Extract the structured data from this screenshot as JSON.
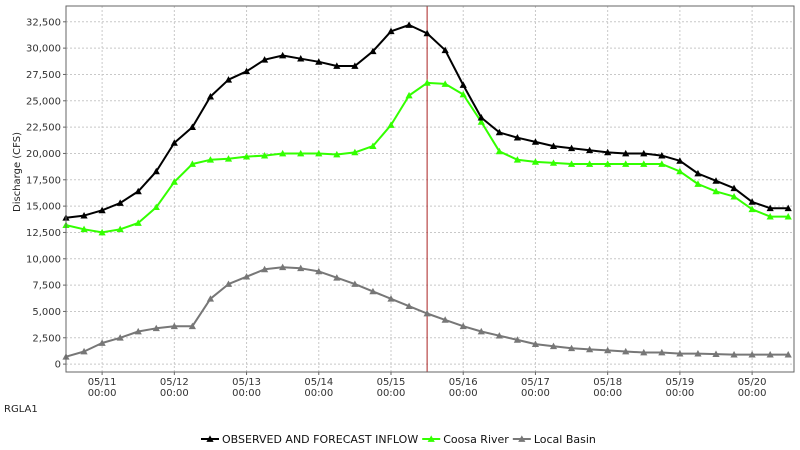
{
  "station_label": "RGLA1",
  "chart_data": {
    "type": "line",
    "title": "",
    "ylabel": "Discharge (CFS)",
    "xlabel": "",
    "ylim": [
      -750,
      34000
    ],
    "xlim": [
      0,
      10.08
    ],
    "y_ticks": [
      0,
      2500,
      5000,
      7500,
      10000,
      12500,
      15000,
      17500,
      20000,
      22500,
      25000,
      27500,
      30000,
      32500
    ],
    "y_tick_labels": [
      "0",
      "2,500",
      "5,000",
      "7,500",
      "10,000",
      "12,500",
      "15,000",
      "17,500",
      "20,000",
      "22,500",
      "25,000",
      "27,500",
      "30,000",
      "32,500"
    ],
    "x_ticks": [
      {
        "x": 0.5,
        "date": "05/11",
        "time": "00:00"
      },
      {
        "x": 1.5,
        "date": "05/12",
        "time": "00:00"
      },
      {
        "x": 2.5,
        "date": "05/13",
        "time": "00:00"
      },
      {
        "x": 3.5,
        "date": "05/14",
        "time": "00:00"
      },
      {
        "x": 4.5,
        "date": "05/15",
        "time": "00:00"
      },
      {
        "x": 5.5,
        "date": "05/16",
        "time": "00:00"
      },
      {
        "x": 6.5,
        "date": "05/17",
        "time": "00:00"
      },
      {
        "x": 7.5,
        "date": "05/18",
        "time": "00:00"
      },
      {
        "x": 8.5,
        "date": "05/19",
        "time": "00:00"
      },
      {
        "x": 9.5,
        "date": "05/20",
        "time": "00:00"
      }
    ],
    "grid": true,
    "current_time_x": 5.0,
    "legend_position": "bottom",
    "x": [
      0.0,
      0.25,
      0.5,
      0.75,
      1.0,
      1.25,
      1.5,
      1.75,
      2.0,
      2.25,
      2.5,
      2.75,
      3.0,
      3.25,
      3.5,
      3.75,
      4.0,
      4.25,
      4.5,
      4.75,
      5.0,
      5.25,
      5.5,
      5.75,
      6.0,
      6.25,
      6.5,
      6.75,
      7.0,
      7.25,
      7.5,
      7.75,
      8.0,
      8.25,
      8.5,
      8.75,
      9.0,
      9.25,
      9.5,
      9.75,
      10.0
    ],
    "series": [
      {
        "name": "OBSERVED AND FORECAST INFLOW",
        "color": "#000000",
        "values": [
          13900,
          14100,
          14600,
          15300,
          16400,
          18300,
          21000,
          22500,
          25400,
          27000,
          27800,
          28900,
          29300,
          29000,
          28700,
          28300,
          28300,
          29700,
          31600,
          32200,
          31400,
          29800,
          26500,
          23400,
          22000,
          21500,
          21100,
          20700,
          20500,
          20300,
          20100,
          20000,
          20000,
          19800,
          19300,
          18100,
          17400,
          16700,
          15400,
          14800,
          14800
        ]
      },
      {
        "name": "Coosa River",
        "color": "#33ff00",
        "values": [
          13200,
          12800,
          12500,
          12800,
          13400,
          14900,
          17300,
          19000,
          19400,
          19500,
          19700,
          19800,
          20000,
          20000,
          20000,
          19900,
          20100,
          20700,
          22700,
          25500,
          26700,
          26600,
          25600,
          23000,
          20200,
          19400,
          19200,
          19100,
          19000,
          19000,
          19000,
          19000,
          19000,
          19000,
          18300,
          17100,
          16400,
          15900,
          14700,
          14000,
          14000
        ]
      },
      {
        "name": "Local Basin",
        "color": "#777777",
        "values": [
          700,
          1200,
          2000,
          2500,
          3100,
          3400,
          3600,
          3600,
          6200,
          7600,
          8300,
          9000,
          9200,
          9100,
          8800,
          8200,
          7600,
          6900,
          6200,
          5500,
          4800,
          4200,
          3600,
          3100,
          2700,
          2300,
          1900,
          1700,
          1500,
          1400,
          1300,
          1200,
          1100,
          1100,
          1000,
          1000,
          950,
          900,
          900,
          900,
          900
        ]
      }
    ]
  }
}
